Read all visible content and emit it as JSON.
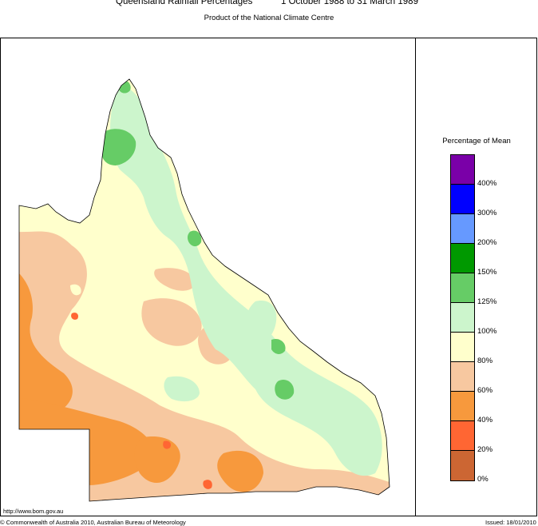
{
  "header": {
    "title": "Queensland Rainfall Percentages",
    "period": "1 October 1988 to 31 March 1989",
    "subtitle": "Product of the National Climate Centre"
  },
  "legend": {
    "title": "Percentage of Mean",
    "bins": [
      {
        "color": "#7a00a8"
      },
      {
        "color": "#0000ff"
      },
      {
        "color": "#6699ff"
      },
      {
        "color": "#009900"
      },
      {
        "color": "#66cc66"
      },
      {
        "color": "#ccf5cc"
      },
      {
        "color": "#ffffcc"
      },
      {
        "color": "#f7c8a0"
      },
      {
        "color": "#f7993d"
      },
      {
        "color": "#ff6633"
      },
      {
        "color": "#cc6633"
      }
    ],
    "labels": [
      "400%",
      "300%",
      "200%",
      "150%",
      "125%",
      "100%",
      "80%",
      "60%",
      "40%",
      "20%",
      "0%"
    ]
  },
  "footer": {
    "url": "http://www.bom.gov.au",
    "copyright": "© Commonwealth of Australia 2010, Australian Bureau of Meteorology",
    "issued": "Issued: 18/01/2010"
  }
}
